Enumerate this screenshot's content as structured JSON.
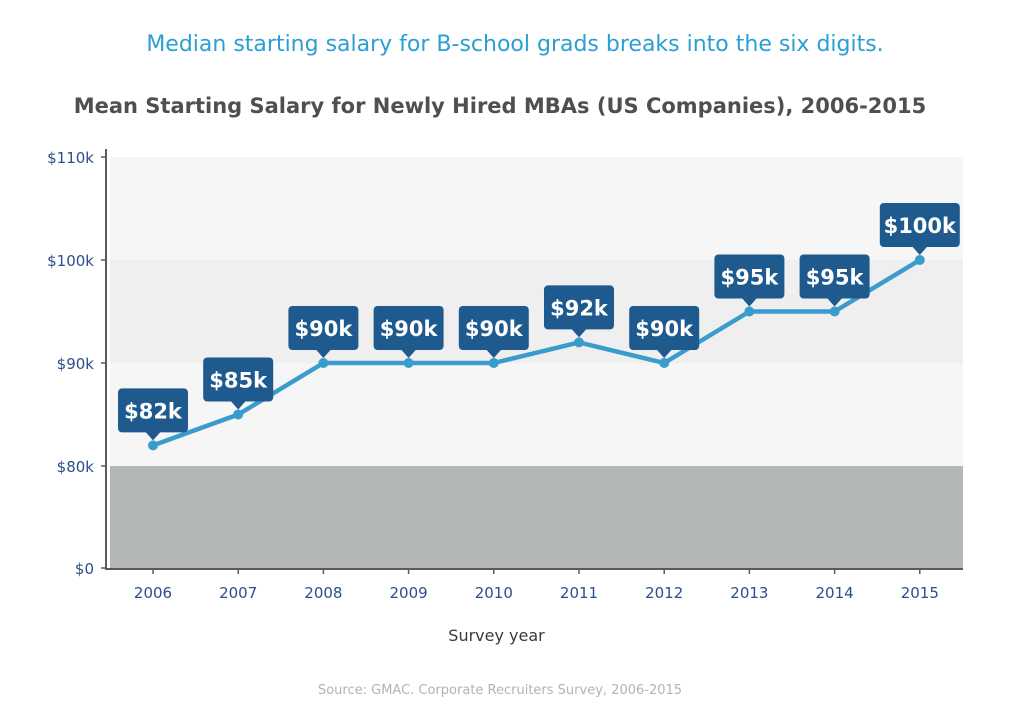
{
  "headline": "Median starting salary for B-school grads breaks into the six digits.",
  "source": "Source: GMAC. Corporate Recruiters Survey, 2006-2015",
  "colors": {
    "line": "#3a9ccc",
    "label_bg": "#1f5a8f",
    "axis_text": "#2a4f8a",
    "band_light": "#f6f6f6",
    "band_mid": "#efefef",
    "band_dark": "#b4b7b7"
  },
  "chart_data": {
    "type": "line",
    "title": "Mean Starting  Salary for Newly Hired MBAs (US Companies), 2006-2015",
    "xlabel": "Survey year",
    "ylabel": "",
    "categories": [
      "2006",
      "2007",
      "2008",
      "2009",
      "2010",
      "2011",
      "2012",
      "2013",
      "2014",
      "2015"
    ],
    "values": [
      82,
      85,
      90,
      90,
      90,
      92,
      90,
      95,
      95,
      100
    ],
    "data_labels": [
      "$82k",
      "$85k",
      "$90k",
      "$90k",
      "$90k",
      "$92k",
      "$90k",
      "$95k",
      "$95k",
      "$100k"
    ],
    "y_ticks": [
      {
        "value": 0,
        "label": "$0"
      },
      {
        "value": 80,
        "label": "$80k"
      },
      {
        "value": 90,
        "label": "$90k"
      },
      {
        "value": 100,
        "label": "$100k"
      },
      {
        "value": 110,
        "label": "$110k"
      }
    ],
    "y_axis_break": "linear 80–110 above a compressed 0–80 band",
    "ylim": [
      0,
      110
    ],
    "grid": false,
    "legend": "none"
  }
}
